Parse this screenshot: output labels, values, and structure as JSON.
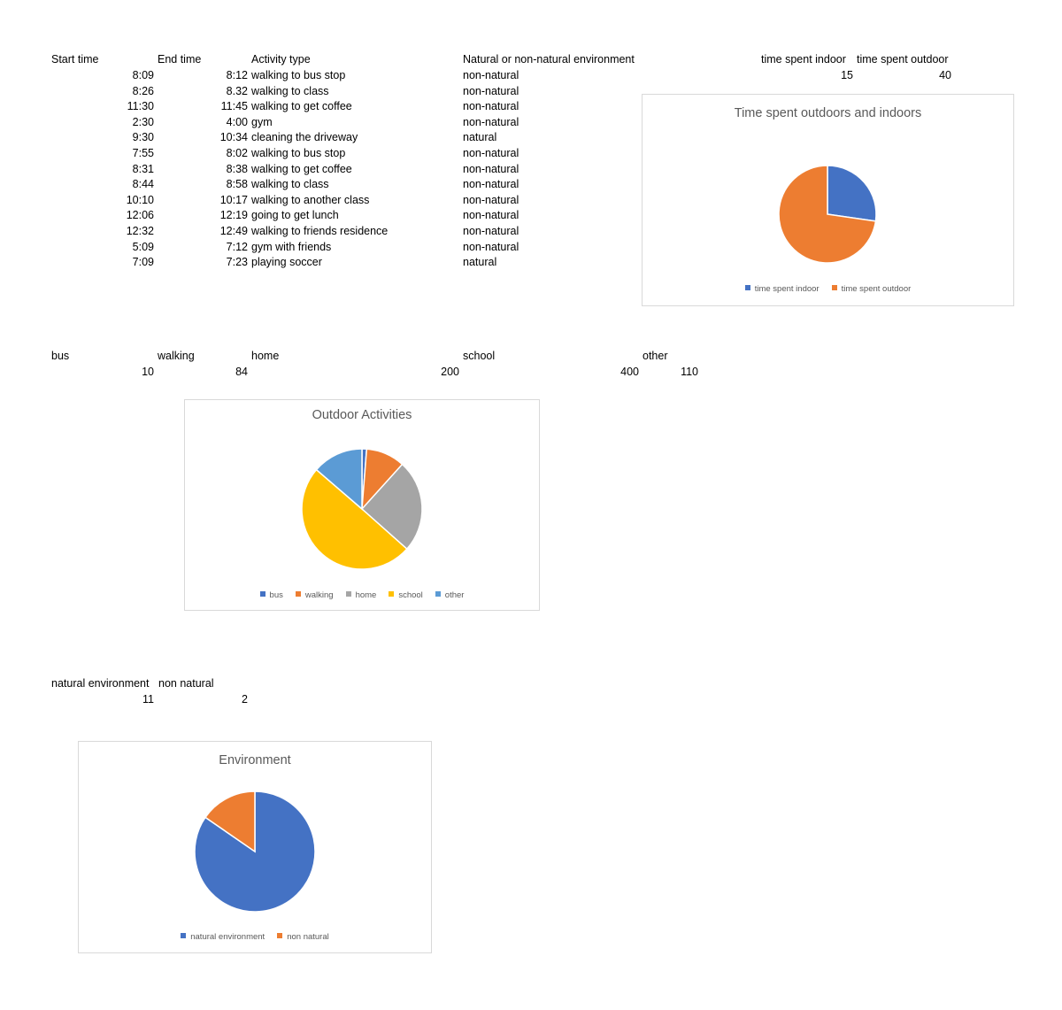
{
  "log_table": {
    "headers": {
      "start_time": "Start time",
      "end_time": "End time",
      "activity_type": "Activity type",
      "environment": "Natural or non-natural environment",
      "time_indoor": "time spent indoor",
      "time_outdoor": "time spent outdoor"
    },
    "rows": [
      {
        "start": "8:09",
        "end": "8:12",
        "activity": "walking to bus stop",
        "env": "non-natural"
      },
      {
        "start": "8:26",
        "end": "8.32",
        "activity": "walking to class",
        "env": "non-natural"
      },
      {
        "start": "11:30",
        "end": "11:45",
        "activity": "walking to get coffee",
        "env": "non-natural"
      },
      {
        "start": "2:30",
        "end": "4:00",
        "activity": "gym",
        "env": "non-natural"
      },
      {
        "start": "9:30",
        "end": "10:34",
        "activity": "cleaning the driveway",
        "env": "natural"
      },
      {
        "start": "7:55",
        "end": "8:02",
        "activity": "walking to bus stop",
        "env": "non-natural"
      },
      {
        "start": "8:31",
        "end": "8:38",
        "activity": "walking to get coffee",
        "env": "non-natural"
      },
      {
        "start": "8:44",
        "end": "8:58",
        "activity": "walking to class",
        "env": "non-natural"
      },
      {
        "start": "10:10",
        "end": "10:17",
        "activity": "walking to another class",
        "env": "non-natural"
      },
      {
        "start": "12:06",
        "end": "12:19",
        "activity": "going to get lunch",
        "env": "non-natural"
      },
      {
        "start": "12:32",
        "end": "12:49",
        "activity": "walking to friends residence",
        "env": "non-natural"
      },
      {
        "start": "5:09",
        "end": "7:12",
        "activity": "gym with friends",
        "env": "non-natural"
      },
      {
        "start": "7:09",
        "end": "7:23",
        "activity": "playing soccer",
        "env": "natural"
      }
    ],
    "time_indoor_value": "15",
    "time_outdoor_value": "40"
  },
  "activity_table": {
    "headers": {
      "bus": "bus",
      "walking": "walking",
      "home": "home",
      "school": "school",
      "other": "other"
    },
    "values": {
      "v1": "10",
      "v2": "84",
      "v3": "200",
      "v4": "400",
      "v5": "110"
    }
  },
  "env_table": {
    "headers": {
      "natural": "natural environment",
      "non_natural": "non natural"
    },
    "values": {
      "natural": "11",
      "non_natural": "2"
    }
  },
  "chart_data": [
    {
      "type": "pie",
      "title": "Time spent outdoors and indoors",
      "categories": [
        "time spent indoor",
        "time spent outdoor"
      ],
      "values": [
        15,
        40
      ],
      "colors": [
        "#4472c4",
        "#ed7d31"
      ],
      "legend": "bottom"
    },
    {
      "type": "pie",
      "title": "Outdoor Activities",
      "categories": [
        "bus",
        "walking",
        "home",
        "school",
        "other"
      ],
      "values": [
        10,
        84,
        200,
        400,
        110
      ],
      "colors": [
        "#4472c4",
        "#ed7d31",
        "#a5a5a5",
        "#ffc000",
        "#5b9bd5"
      ],
      "legend": "bottom"
    },
    {
      "type": "pie",
      "title": "Environment",
      "categories": [
        "natural environment",
        "non natural"
      ],
      "values": [
        11,
        2
      ],
      "colors": [
        "#4472c4",
        "#ed7d31"
      ],
      "legend": "bottom"
    }
  ]
}
